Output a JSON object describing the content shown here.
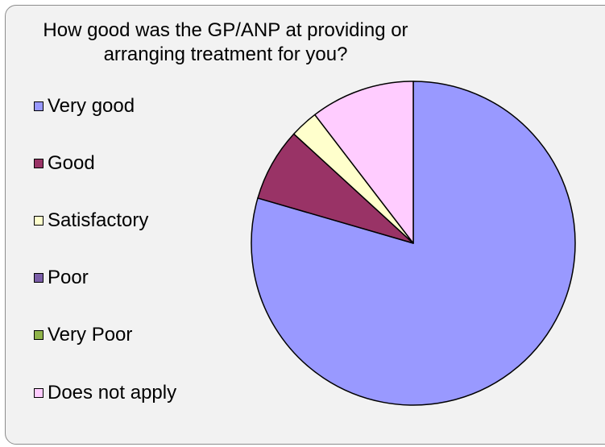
{
  "chart_data": {
    "type": "pie",
    "title": "How good was the GP/ANP at providing or arranging treatment for you?",
    "title_lines": [
      "How good was the GP/ANP at providing or",
      "arranging treatment for you?"
    ],
    "categories": [
      "Very good",
      "Good",
      "Satisfactory",
      "Poor",
      "Very Poor",
      "Does not apply"
    ],
    "values": [
      79.5,
      7.3,
      2.8,
      0,
      0,
      10.4
    ],
    "colors": [
      "#9999ff",
      "#993366",
      "#ffffcc",
      "#7b5ea8",
      "#8fb34a",
      "#ffccff"
    ],
    "legend_position": "left",
    "start_angle_deg": 0,
    "direction": "clockwise"
  }
}
